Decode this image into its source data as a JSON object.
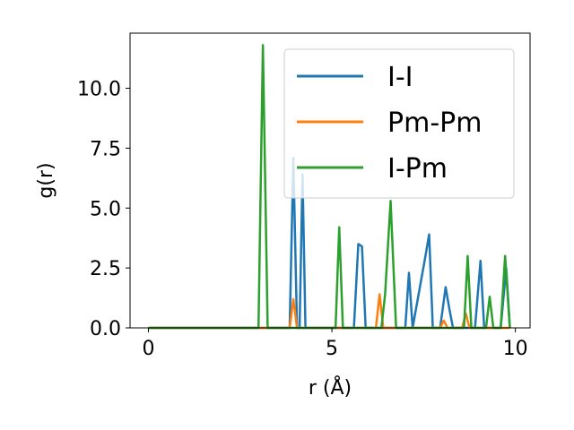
{
  "chart_data": {
    "type": "line",
    "title": "",
    "xlabel": "r (Å)",
    "ylabel": "g(r)",
    "xlim": [
      -0.5,
      10.4
    ],
    "ylim": [
      0,
      12.3
    ],
    "xticks": [
      0,
      5,
      10
    ],
    "xtick_labels": [
      "0",
      "5",
      "10"
    ],
    "yticks": [
      0,
      2.5,
      5,
      7.5,
      10
    ],
    "ytick_labels": [
      "0.0",
      "2.5",
      "5.0",
      "7.5",
      "10.0"
    ],
    "grid": false,
    "legend": "top-right",
    "series": [
      {
        "name": "I-I",
        "color": "#1f77b4",
        "x": [
          0,
          3.85,
          3.95,
          4.05,
          4.12,
          4.2,
          4.28,
          4.35,
          5.6,
          5.72,
          5.82,
          5.92,
          6.0,
          7.0,
          7.1,
          7.2,
          7.55,
          7.65,
          7.75,
          7.95,
          8.1,
          8.2,
          8.3,
          8.45,
          8.9,
          9.05,
          9.15,
          9.6,
          9.75,
          9.85
        ],
        "y": [
          0,
          0,
          7.1,
          0,
          0,
          6.4,
          0,
          0,
          0,
          3.5,
          3.4,
          0,
          0,
          0,
          2.3,
          0,
          3.0,
          3.9,
          0,
          0,
          1.7,
          0.8,
          0,
          0,
          0,
          2.8,
          0,
          0,
          2.5,
          0
        ]
      },
      {
        "name": "Pm-Pm",
        "color": "#ff7f0e",
        "x": [
          0,
          3.85,
          3.95,
          4.05,
          6.2,
          6.3,
          6.4,
          7.95,
          8.05,
          8.15,
          8.55,
          8.65,
          8.75,
          9.85
        ],
        "y": [
          0,
          0,
          1.2,
          0,
          0,
          1.4,
          0,
          0,
          0.3,
          0,
          0,
          0.6,
          0,
          0
        ]
      },
      {
        "name": "I-Pm",
        "color": "#2ca02c",
        "x": [
          0,
          3.0,
          3.12,
          3.25,
          5.1,
          5.2,
          5.3,
          6.35,
          6.45,
          6.6,
          6.75,
          8.6,
          8.7,
          8.8,
          8.85,
          9.0,
          9.2,
          9.3,
          9.4,
          9.6,
          9.72,
          9.85
        ],
        "y": [
          0,
          0,
          11.8,
          0,
          0,
          4.2,
          0,
          0,
          1.4,
          5.3,
          0,
          0,
          3.0,
          0,
          0,
          0,
          0,
          1.3,
          0,
          0,
          3.0,
          0
        ]
      }
    ]
  }
}
